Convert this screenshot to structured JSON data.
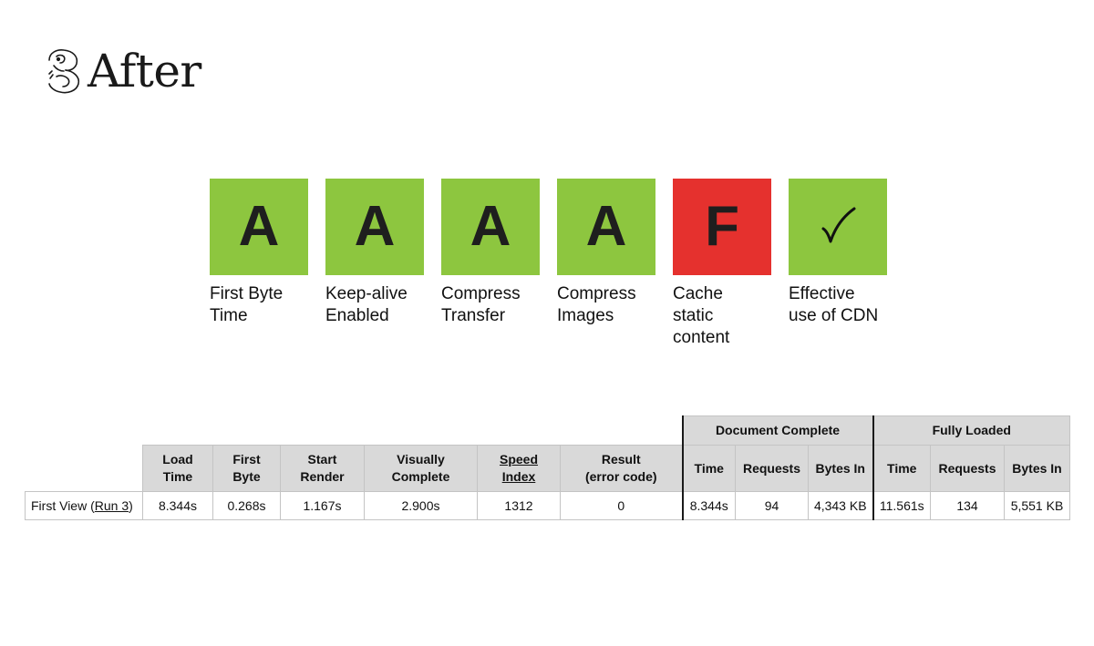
{
  "header": {
    "title": "After"
  },
  "colors": {
    "pass": "#8dc63f",
    "fail": "#e5312e",
    "header_bg": "#d9d9d9"
  },
  "grades": [
    {
      "grade": "A",
      "status": "pass",
      "label": "First Byte\nTime"
    },
    {
      "grade": "A",
      "status": "pass",
      "label": "Keep-alive\nEnabled"
    },
    {
      "grade": "A",
      "status": "pass",
      "label": "Compress\nTransfer"
    },
    {
      "grade": "A",
      "status": "pass",
      "label": "Compress\nImages"
    },
    {
      "grade": "F",
      "status": "fail",
      "label": "Cache\nstatic\ncontent"
    },
    {
      "grade": "checkmark-icon",
      "status": "pass",
      "label": "Effective\nuse of CDN"
    }
  ],
  "table": {
    "groups": {
      "document_complete": "Document Complete",
      "fully_loaded": "Fully Loaded"
    },
    "columns": {
      "load_time": "Load\nTime",
      "first_byte": "First\nByte",
      "start_render": "Start\nRender",
      "visually_complete": "Visually\nComplete",
      "speed_index": "Speed\nIndex",
      "result": "Result\n(error code)",
      "dc_time": "Time",
      "dc_requests": "Requests",
      "dc_bytes": "Bytes In",
      "fl_time": "Time",
      "fl_requests": "Requests",
      "fl_bytes": "Bytes In"
    },
    "row": {
      "label_prefix": "First View (",
      "run_link": "Run 3",
      "label_suffix": ")",
      "load_time": "8.344s",
      "first_byte": "0.268s",
      "start_render": "1.167s",
      "visually_complete": "2.900s",
      "speed_index": "1312",
      "result": "0",
      "dc_time": "8.344s",
      "dc_requests": "94",
      "dc_bytes": "4,343 KB",
      "fl_time": "11.561s",
      "fl_requests": "134",
      "fl_bytes": "5,551 KB"
    }
  }
}
